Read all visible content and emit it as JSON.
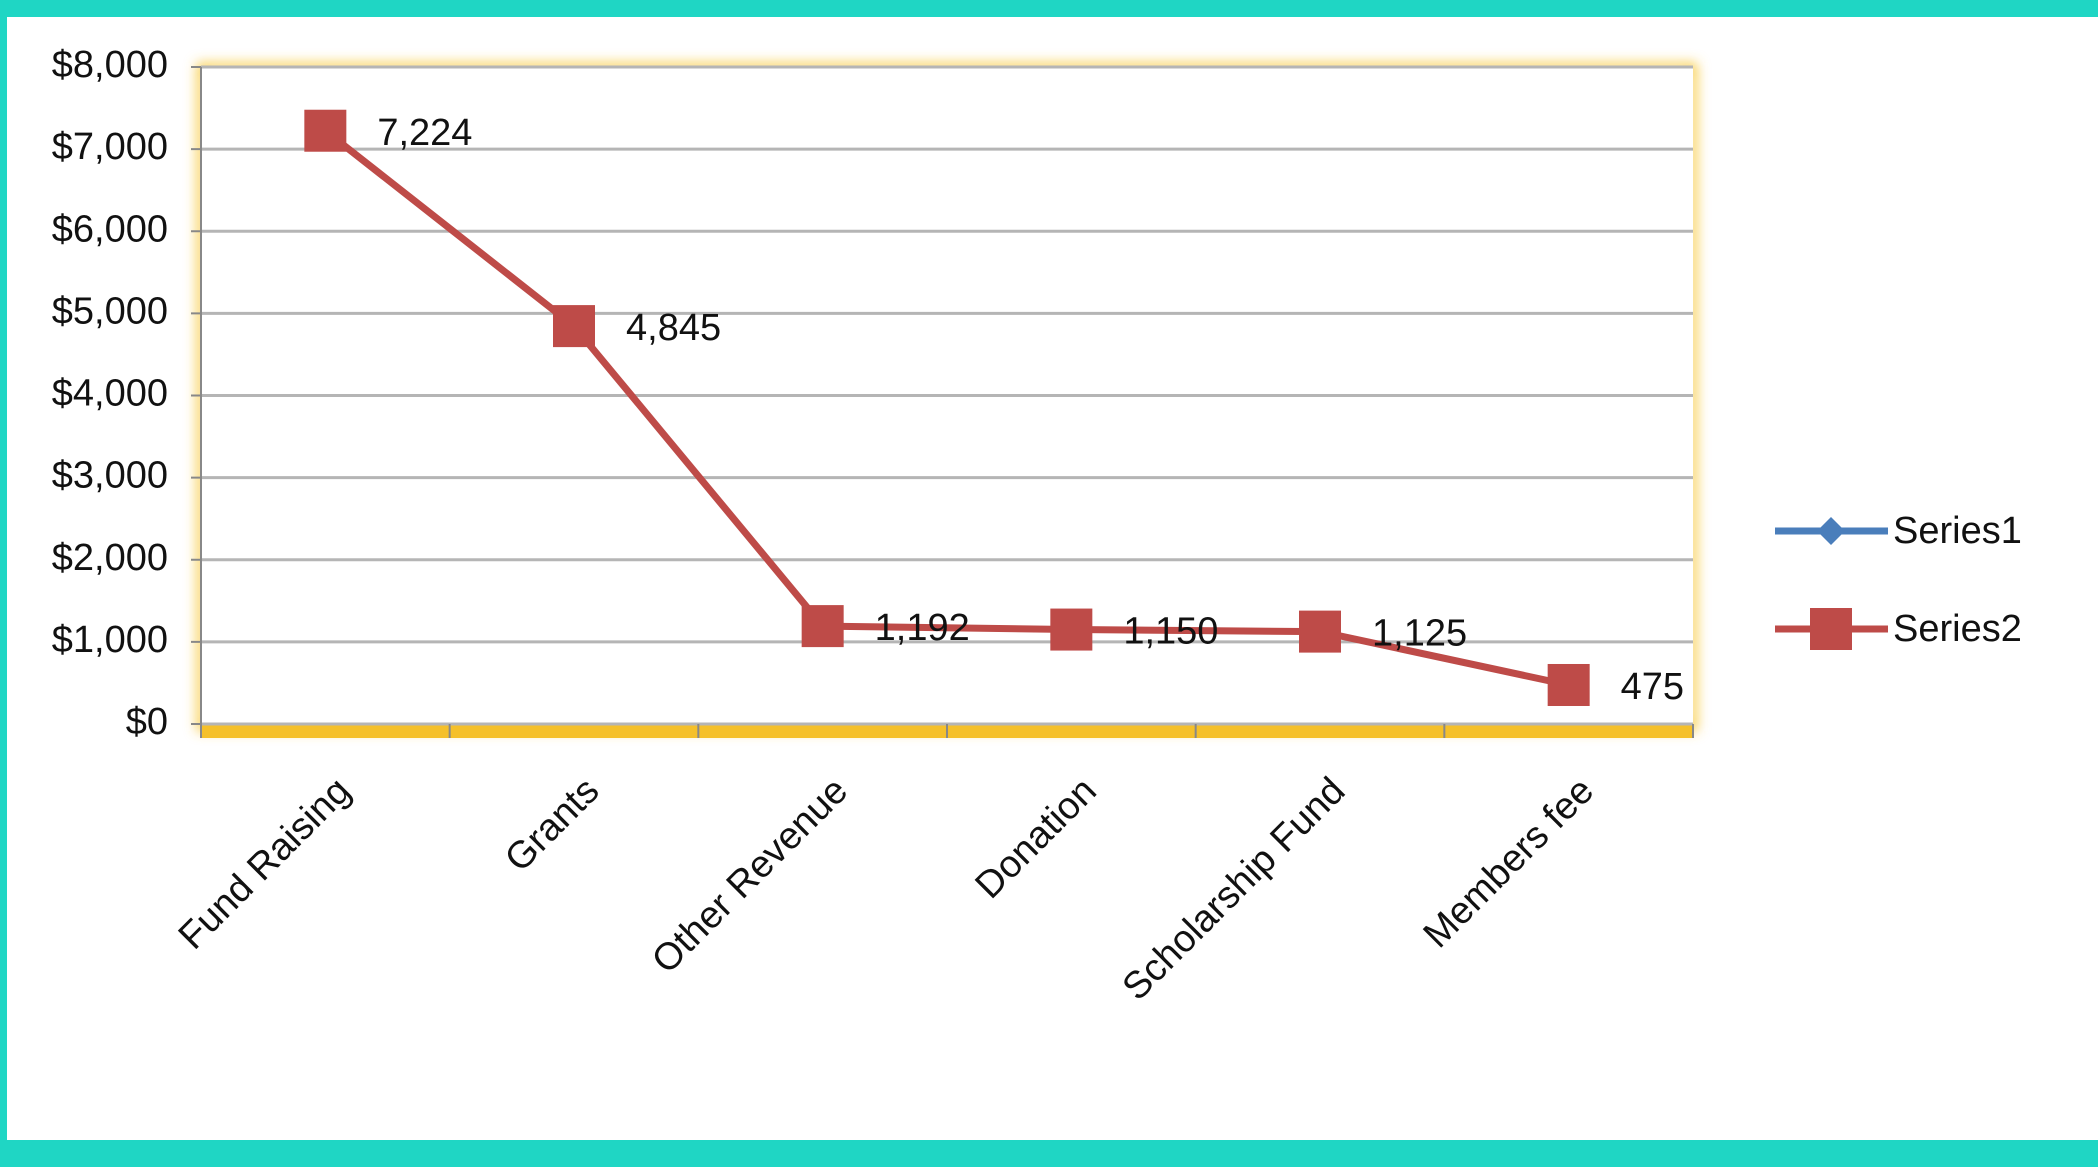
{
  "chart_data": {
    "type": "line",
    "categories": [
      "Fund Raising",
      "Grants",
      "Other Revenue",
      "Donation",
      "Scholarship Fund",
      "Members fee"
    ],
    "series": [
      {
        "name": "Series1",
        "color": "#4a7ebb",
        "values": [
          null,
          null,
          null,
          null,
          null,
          null
        ]
      },
      {
        "name": "Series2",
        "color": "#be4b48",
        "values": [
          7224,
          4845,
          1192,
          1150,
          1125,
          475
        ],
        "value_labels": [
          "7,224",
          "4,845",
          "1,192",
          "1,150",
          "1,125",
          "475"
        ]
      }
    ],
    "ylim": [
      0,
      8000
    ],
    "yticks": [
      {
        "value": 0,
        "label": "$0"
      },
      {
        "value": 1000,
        "label": "$1,000"
      },
      {
        "value": 2000,
        "label": "$2,000"
      },
      {
        "value": 3000,
        "label": "$3,000"
      },
      {
        "value": 4000,
        "label": "$4,000"
      },
      {
        "value": 5000,
        "label": "$5,000"
      },
      {
        "value": 6000,
        "label": "$6,000"
      },
      {
        "value": 7000,
        "label": "$7,000"
      },
      {
        "value": 8000,
        "label": "$8,000"
      }
    ],
    "grid": true,
    "legend": "right"
  }
}
